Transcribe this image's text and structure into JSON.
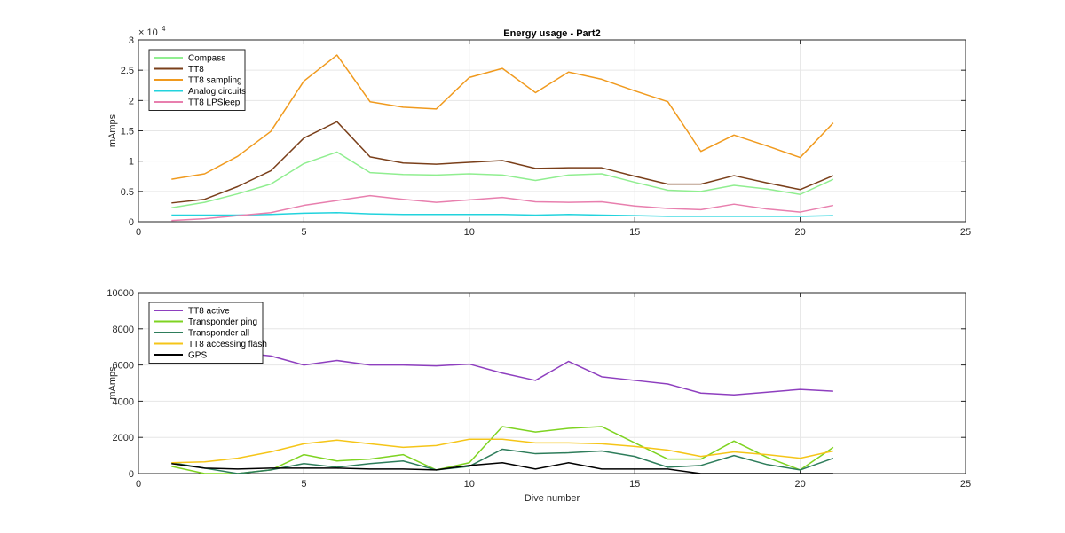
{
  "chart_data": [
    {
      "type": "line",
      "title": "Energy usage - Part2",
      "xlabel": "",
      "ylabel": "mAmps",
      "exponent_label": "× 10",
      "exponent_power": "4",
      "xlim": [
        0,
        25
      ],
      "ylim": [
        0,
        30000
      ],
      "x_ticks": [
        0,
        5,
        10,
        15,
        20,
        25
      ],
      "y_ticks": [
        0,
        5000,
        10000,
        15000,
        20000,
        25000,
        30000
      ],
      "y_tick_labels": [
        "0",
        "0.5",
        "1",
        "1.5",
        "2",
        "2.5",
        "3"
      ],
      "grid": true,
      "legend_position": "top-left",
      "x": [
        1,
        2,
        3,
        4,
        5,
        6,
        7,
        8,
        9,
        10,
        11,
        12,
        13,
        14,
        15,
        16,
        17,
        18,
        19,
        20,
        21
      ],
      "series": [
        {
          "name": "Compass",
          "color": "#90ee90",
          "values": [
            2300,
            3200,
            4600,
            6200,
            9600,
            11500,
            8100,
            7800,
            7700,
            7900,
            7700,
            6800,
            7700,
            7900,
            6500,
            5200,
            5000,
            6000,
            5400,
            4500,
            7000
          ]
        },
        {
          "name": "TT8",
          "color": "#7a3f1a",
          "values": [
            3100,
            3700,
            5800,
            8400,
            13800,
            16500,
            10700,
            9700,
            9500,
            9800,
            10100,
            8800,
            8900,
            8900,
            7500,
            6200,
            6200,
            7600,
            6400,
            5300,
            7600
          ]
        },
        {
          "name": "TT8 sampling",
          "color": "#f09a1e",
          "values": [
            7000,
            7900,
            10800,
            14900,
            23200,
            27500,
            19800,
            18900,
            18600,
            23800,
            25300,
            21300,
            24700,
            23500,
            21600,
            19800,
            11600,
            14300,
            12500,
            10600,
            16300
          ]
        },
        {
          "name": "Analog circuits",
          "color": "#22d3dd",
          "values": [
            1100,
            1100,
            1100,
            1200,
            1400,
            1500,
            1300,
            1200,
            1200,
            1200,
            1200,
            1100,
            1200,
            1100,
            1000,
            900,
            900,
            900,
            900,
            900,
            1000
          ]
        },
        {
          "name": "TT8 LPSleep",
          "color": "#e87fae",
          "values": [
            200,
            500,
            1000,
            1500,
            2700,
            3500,
            4300,
            3700,
            3200,
            3600,
            4000,
            3300,
            3200,
            3300,
            2600,
            2200,
            2000,
            2900,
            2100,
            1600,
            2700
          ]
        }
      ]
    },
    {
      "type": "line",
      "title": "",
      "xlabel": "Dive number",
      "ylabel": "mAmps",
      "xlim": [
        0,
        25
      ],
      "ylim": [
        0,
        10000
      ],
      "x_ticks": [
        0,
        5,
        10,
        15,
        20,
        25
      ],
      "y_ticks": [
        0,
        2000,
        4000,
        6000,
        8000,
        10000
      ],
      "y_tick_labels": [
        "0",
        "2000",
        "4000",
        "6000",
        "8000",
        "10000"
      ],
      "grid": true,
      "legend_position": "top-left",
      "x": [
        1,
        2,
        3,
        4,
        5,
        6,
        7,
        8,
        9,
        10,
        11,
        12,
        13,
        14,
        15,
        16,
        17,
        18,
        19,
        20,
        21
      ],
      "series": [
        {
          "name": "TT8 active",
          "color": "#8e3fbf",
          "values": [
            7100,
            6900,
            6700,
            6500,
            6000,
            6250,
            6000,
            6000,
            5950,
            6050,
            5550,
            5150,
            6200,
            5350,
            5150,
            4950,
            4450,
            4350,
            4500,
            4650,
            4550
          ]
        },
        {
          "name": "Transponder ping",
          "color": "#7ed321",
          "values": [
            400,
            0,
            0,
            200,
            1050,
            700,
            800,
            1050,
            200,
            600,
            2600,
            2300,
            2500,
            2600,
            1700,
            800,
            800,
            1800,
            900,
            200,
            1450
          ]
        },
        {
          "name": "Transponder all",
          "color": "#2e7d5b",
          "values": [
            600,
            300,
            0,
            200,
            550,
            350,
            550,
            700,
            200,
            400,
            1350,
            1100,
            1150,
            1250,
            950,
            350,
            450,
            1000,
            500,
            200,
            850
          ]
        },
        {
          "name": "TT8 accessing flash",
          "color": "#f5c518",
          "values": [
            600,
            650,
            850,
            1200,
            1650,
            1850,
            1650,
            1450,
            1550,
            1900,
            1900,
            1700,
            1700,
            1650,
            1500,
            1300,
            950,
            1200,
            1050,
            850,
            1250
          ]
        },
        {
          "name": "GPS",
          "color": "#000000",
          "values": [
            550,
            300,
            250,
            300,
            300,
            300,
            250,
            250,
            200,
            450,
            600,
            250,
            600,
            250,
            250,
            250,
            0,
            0,
            0,
            0,
            0
          ]
        }
      ]
    }
  ]
}
